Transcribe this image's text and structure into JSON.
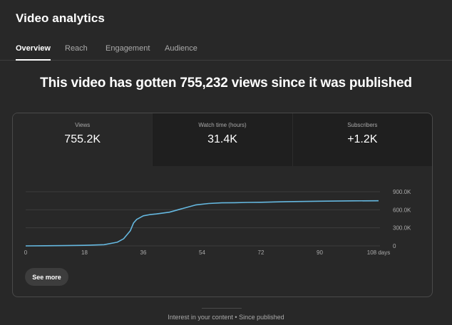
{
  "app": {
    "title": "Video analytics"
  },
  "tabs": [
    {
      "label": "Overview",
      "active": true
    },
    {
      "label": "Reach",
      "active": false
    },
    {
      "label": "Engagement",
      "active": false
    },
    {
      "label": "Audience",
      "active": false
    }
  ],
  "headline": "This video has gotten 755,232 views since it was published",
  "metrics": [
    {
      "label": "Views",
      "value": "755.2K",
      "active": true
    },
    {
      "label": "Watch time (hours)",
      "value": "31.4K",
      "active": false
    },
    {
      "label": "Subscribers",
      "value": "+1.2K",
      "active": false
    }
  ],
  "chart_data": {
    "type": "line",
    "x": [
      0,
      6,
      12,
      18,
      24,
      28,
      30,
      32,
      33,
      34,
      35,
      36,
      38,
      40,
      44,
      48,
      52,
      56,
      60,
      64,
      68,
      72,
      80,
      90,
      100,
      108
    ],
    "series": [
      {
        "values": [
          0,
          2,
          5,
          10,
          20,
          60,
          120,
          250,
          380,
          440,
          470,
          500,
          520,
          530,
          560,
          620,
          680,
          705,
          715,
          718,
          722,
          725,
          735,
          742,
          748,
          750
        ]
      }
    ],
    "x_ticks": [
      "0",
      "18",
      "36",
      "54",
      "72",
      "90",
      "108 days"
    ],
    "x_tick_values": [
      0,
      18,
      36,
      54,
      72,
      90,
      108
    ],
    "y_ticks": [
      "0",
      "300.0K",
      "600.0K",
      "900.0K"
    ],
    "y_tick_values": [
      0,
      300,
      600,
      900
    ],
    "xlim": [
      0,
      108
    ],
    "ylim": [
      0,
      900
    ],
    "grid": true,
    "line_color": "#65b8e0"
  },
  "actions": {
    "see_more": "See more"
  },
  "footer": {
    "text": "Interest in your content • Since published"
  },
  "colors": {
    "background": "#282828",
    "card_inactive": "#1f1f1f",
    "accent_line": "#65b8e0"
  }
}
